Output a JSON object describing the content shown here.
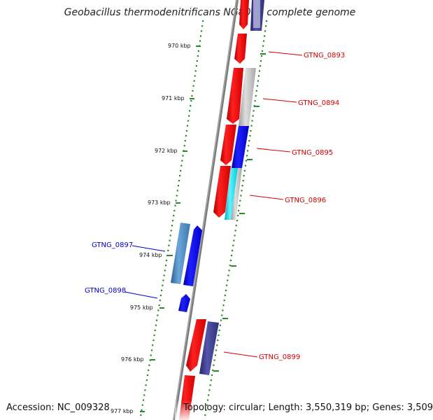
{
  "title": "Geobacillus thermodenitrificans NG80-2, complete genome",
  "accession": "Accession: NC_009328",
  "topology": "Topology: circular; Length: 3,550,319 bp; Genes: 3,509",
  "colors": {
    "forward_label": "#d40000",
    "reverse_label": "#0000cc",
    "tick": "#2a8a2a",
    "backbone": "#7a7a7a",
    "gene_red": "#ee0000",
    "gene_blue": "#0000ee",
    "gene_steelblue": "#4a86c0",
    "gene_navy": "#3a3a8a",
    "gene_gray": "#b8b8b8",
    "gene_cyan": "#00e0f0"
  },
  "kbp_labels": [
    "970 kbp",
    "971 kbp",
    "972 kbp",
    "973 kbp",
    "974 kbp",
    "975 kbp",
    "976 kbp",
    "977 kbp"
  ],
  "gene_labels": [
    {
      "name": "GTNG_0893",
      "strand": "forward"
    },
    {
      "name": "GTNG_0894",
      "strand": "forward"
    },
    {
      "name": "GTNG_0895",
      "strand": "forward"
    },
    {
      "name": "GTNG_0896",
      "strand": "forward"
    },
    {
      "name": "GTNG_0897",
      "strand": "reverse"
    },
    {
      "name": "GTNG_0898",
      "strand": "reverse"
    },
    {
      "name": "GTNG_0899",
      "strand": "forward"
    }
  ]
}
